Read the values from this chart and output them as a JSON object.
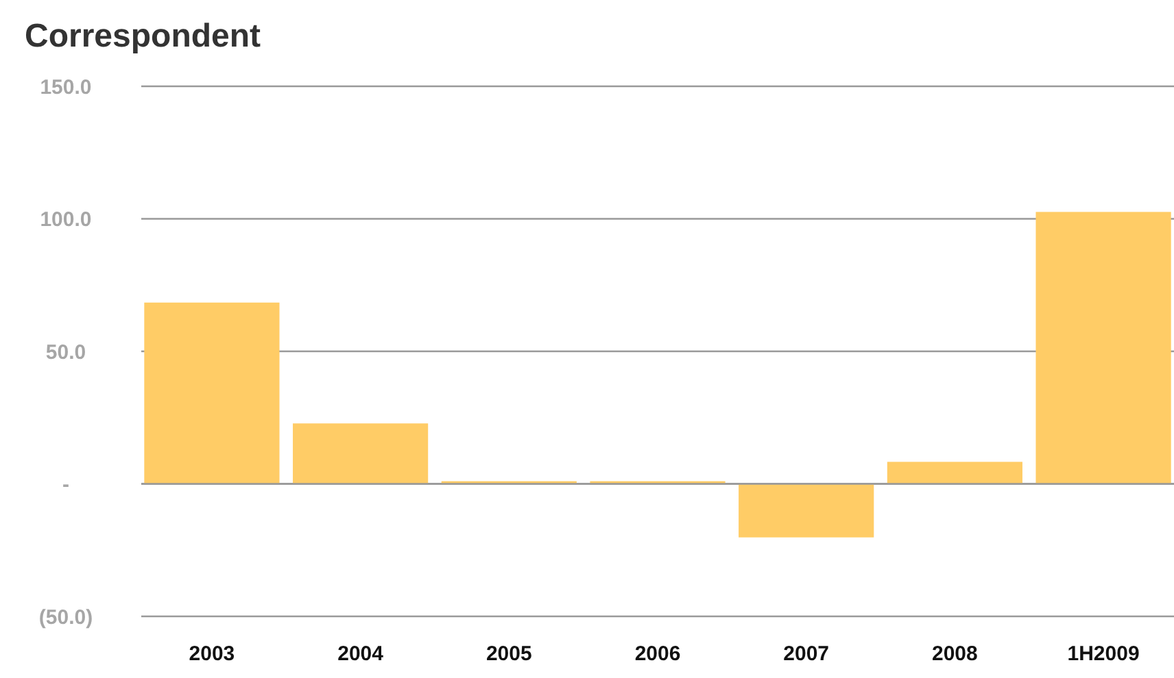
{
  "chart_data": {
    "type": "bar",
    "title": "Correspondent",
    "categories": [
      "2003",
      "2004",
      "2005",
      "2006",
      "2007",
      "2008",
      "1H2009"
    ],
    "values": [
      68.4,
      22.8,
      1,
      1,
      -20.2,
      8.3,
      102.6
    ],
    "color": "#ffcc66",
    "ylim": [
      -50,
      150
    ],
    "yticks": [
      {
        "value": -50,
        "label": "(50.0)"
      },
      {
        "value": 0,
        "label": "-"
      },
      {
        "value": 50,
        "label": "50.0"
      },
      {
        "value": 100,
        "label": "100.0"
      },
      {
        "value": 150,
        "label": "150.0"
      }
    ],
    "grid": "y"
  }
}
